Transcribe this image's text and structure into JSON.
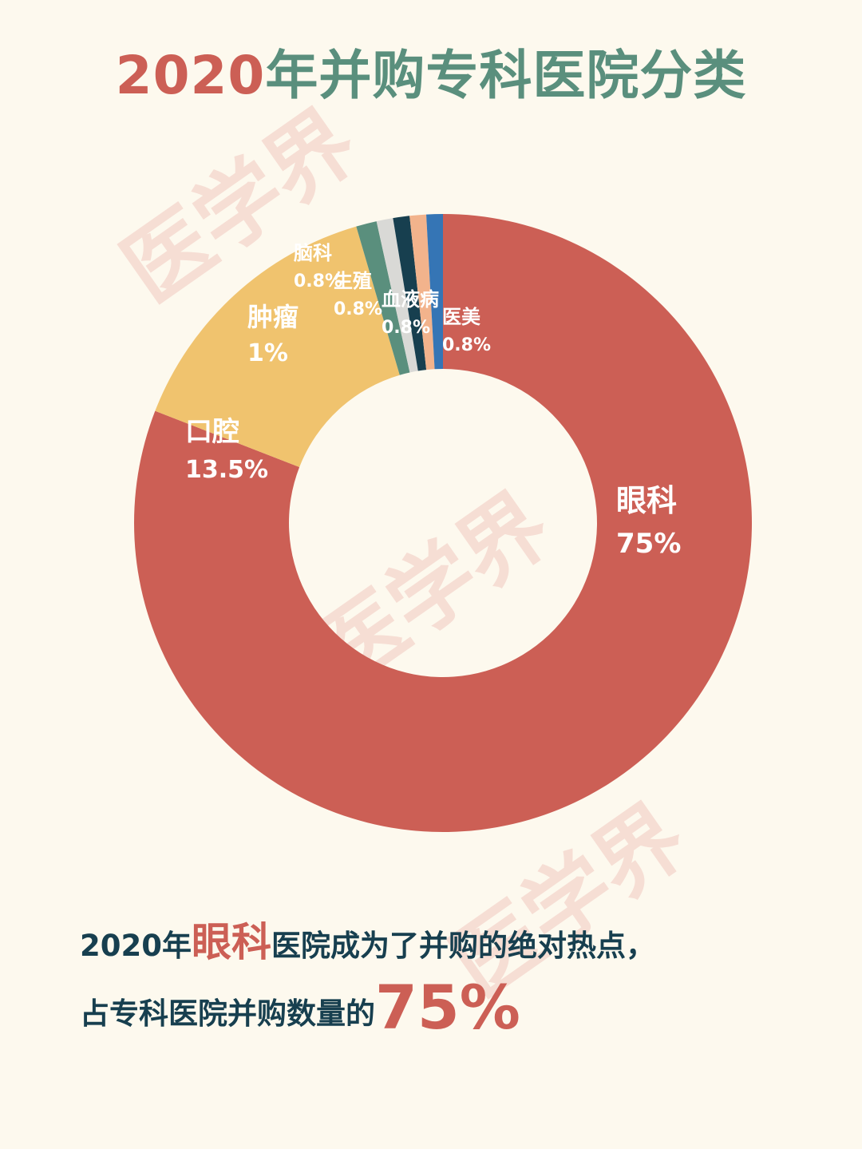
{
  "title": {
    "year": "2020",
    "rest": "年并购专科医院分类"
  },
  "watermark": "医学界",
  "chart_data": {
    "type": "pie",
    "variant": "donut",
    "title": "2020年并购专科医院分类",
    "slices": [
      {
        "label": "眼科",
        "value": 75,
        "value_label": "75%",
        "color": "#cc5f55"
      },
      {
        "label": "口腔",
        "value": 13.5,
        "value_label": "13.5%",
        "color": "#f0c36e"
      },
      {
        "label": "肿瘤",
        "value": 1,
        "value_label": "1%",
        "color": "#5a8f7d"
      },
      {
        "label": "脑科",
        "value": 0.8,
        "value_label": "0.8%",
        "color": "#d9d9d6"
      },
      {
        "label": "生殖",
        "value": 0.8,
        "value_label": "0.8%",
        "color": "#173f4f"
      },
      {
        "label": "血液病",
        "value": 0.8,
        "value_label": "0.8%",
        "color": "#f2b38c"
      },
      {
        "label": "医美",
        "value": 0.8,
        "value_label": "0.8%",
        "color": "#3575b5"
      }
    ]
  },
  "summary": {
    "line1_pre": "2020年",
    "line1_highlight": "眼科",
    "line1_post": "医院成为了并购的绝对热点，",
    "line2_pre": "占专科医院并购数量的",
    "line2_highlight": "75%"
  }
}
